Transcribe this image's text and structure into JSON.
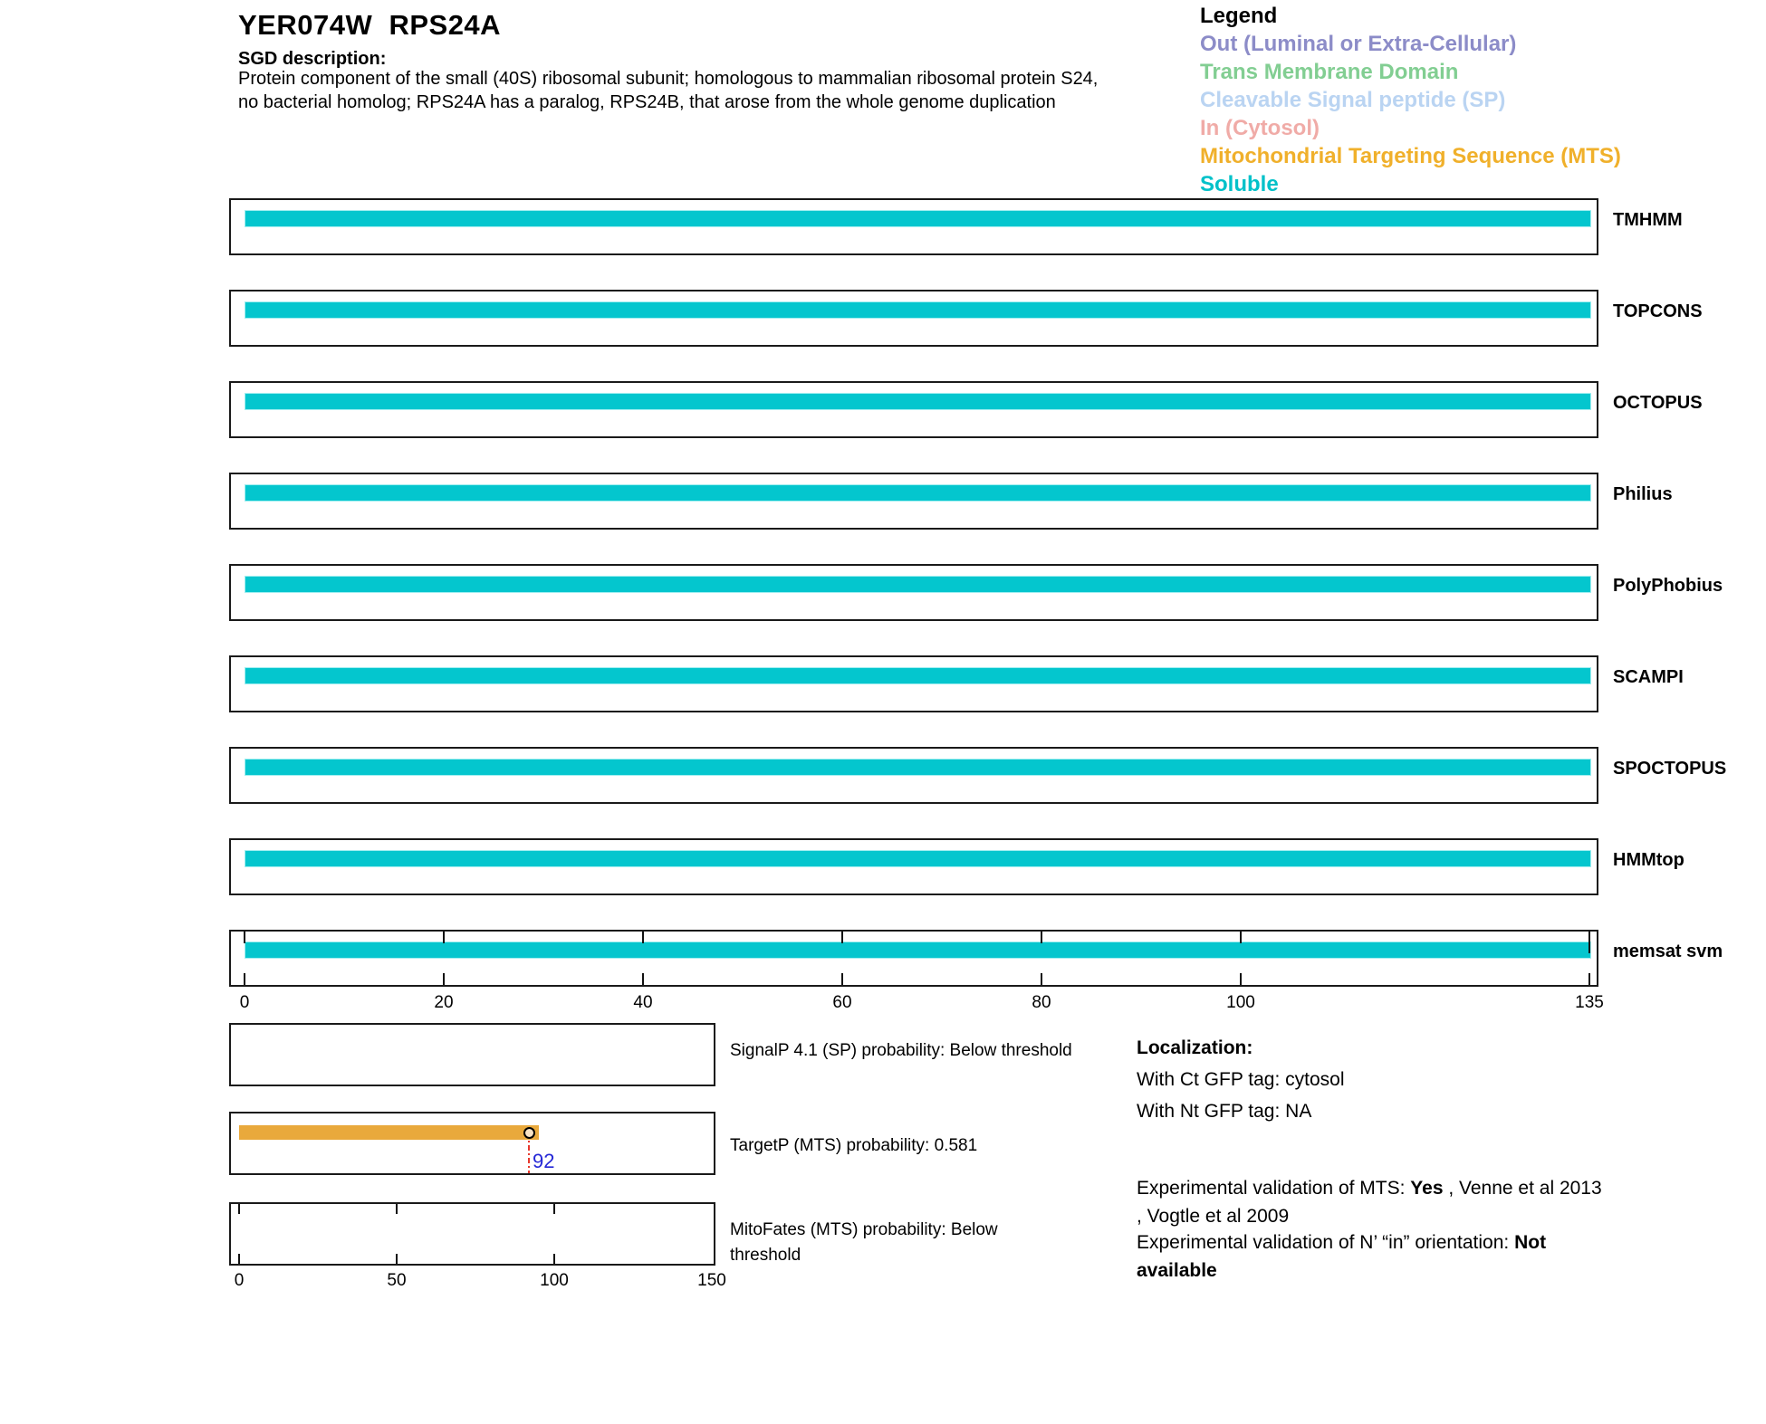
{
  "header": {
    "title": "YER074W  RPS24A",
    "sgd_label": "SGD description:",
    "description_lines": [
      "Protein component of the small (40S) ribosomal subunit; homologous to mammalian ribosomal protein S24,",
      "no bacterial homolog; RPS24A has a paralog, RPS24B, that arose from the whole genome duplication"
    ]
  },
  "legend": {
    "title": "Legend",
    "items": [
      {
        "key": "out",
        "label": "Out (Luminal or Extra-Cellular)",
        "color": "#8c8cc8"
      },
      {
        "key": "tmd",
        "label": "Trans Membrane Domain",
        "color": "#82ce92"
      },
      {
        "key": "sp",
        "label": "Cleavable Signal peptide (SP)",
        "color": "#bad4f2"
      },
      {
        "key": "in",
        "label": "In (Cytosol)",
        "color": "#f0aba7"
      },
      {
        "key": "mts",
        "label": "Mitochondrial Targeting Sequence (MTS)",
        "color": "#f0b02b"
      },
      {
        "key": "soluble",
        "label": "Soluble",
        "color": "#00c1c9"
      }
    ]
  },
  "colors": {
    "bar_soluble": "#04c6ce",
    "bar_mts": "#e9a93c",
    "marker_fill": "#f8e3c6",
    "threshold_line": "#e8382c",
    "position_label": "#2427d6",
    "box_border": "#1a1a1a"
  },
  "chart_data": {
    "type": "bar",
    "title": "Topology / targeting predictions for YER074W RPS24A (135 aa)",
    "xlim": [
      0,
      135
    ],
    "x_ticks": [
      0,
      20,
      40,
      60,
      80,
      100,
      135
    ],
    "tracks": [
      {
        "predictor": "TMHMM",
        "prediction": "Soluble",
        "start": 1,
        "end": 135
      },
      {
        "predictor": "TOPCONS",
        "prediction": "Soluble",
        "start": 1,
        "end": 135
      },
      {
        "predictor": "OCTOPUS",
        "prediction": "Soluble",
        "start": 1,
        "end": 135
      },
      {
        "predictor": "Philius",
        "prediction": "Soluble",
        "start": 1,
        "end": 135
      },
      {
        "predictor": "PolyPhobius",
        "prediction": "Soluble",
        "start": 1,
        "end": 135
      },
      {
        "predictor": "SCAMPI",
        "prediction": "Soluble",
        "start": 1,
        "end": 135
      },
      {
        "predictor": "SPOCTOPUS",
        "prediction": "Soluble",
        "start": 1,
        "end": 135
      },
      {
        "predictor": "HMMtop",
        "prediction": "Soluble",
        "start": 1,
        "end": 135
      },
      {
        "predictor": "memsat svm",
        "prediction": "Soluble",
        "start": 1,
        "end": 135
      }
    ],
    "probability_plots": {
      "xlim": [
        0,
        150
      ],
      "x_ticks": [
        0,
        50,
        100,
        150
      ],
      "plots": [
        {
          "name": "SignalP",
          "label_lines": [
            "SignalP 4.1 (SP) probability: Below threshold"
          ],
          "bar": null,
          "marker": null,
          "ticks_in_box": false
        },
        {
          "name": "TargetP",
          "label_lines": [
            "TargetP (MTS) probability: 0.581"
          ],
          "bar": {
            "type": "MTS",
            "start": 0,
            "end": 95
          },
          "marker": {
            "position": 92,
            "label": "92"
          },
          "ticks_in_box": false
        },
        {
          "name": "MitoFates",
          "label_lines": [
            "MitoFates (MTS) probability: Below",
            "threshold"
          ],
          "bar": null,
          "marker": null,
          "ticks_in_box": true
        }
      ]
    }
  },
  "localization": {
    "heading": "Localization:",
    "ct_line": "With Ct GFP tag: cytosol",
    "nt_line": "With Nt GFP tag: NA",
    "mts_validation": {
      "prefix": "Experimental validation of MTS: ",
      "bold": "Yes",
      "suffix": " , Venne et al 2013",
      "line2": ", Vogtle et al 2009"
    },
    "orientation_validation": {
      "prefix": "Experimental validation of N’ “in” orientation: ",
      "bold_line1": "Not",
      "bold_line2": "available"
    }
  }
}
